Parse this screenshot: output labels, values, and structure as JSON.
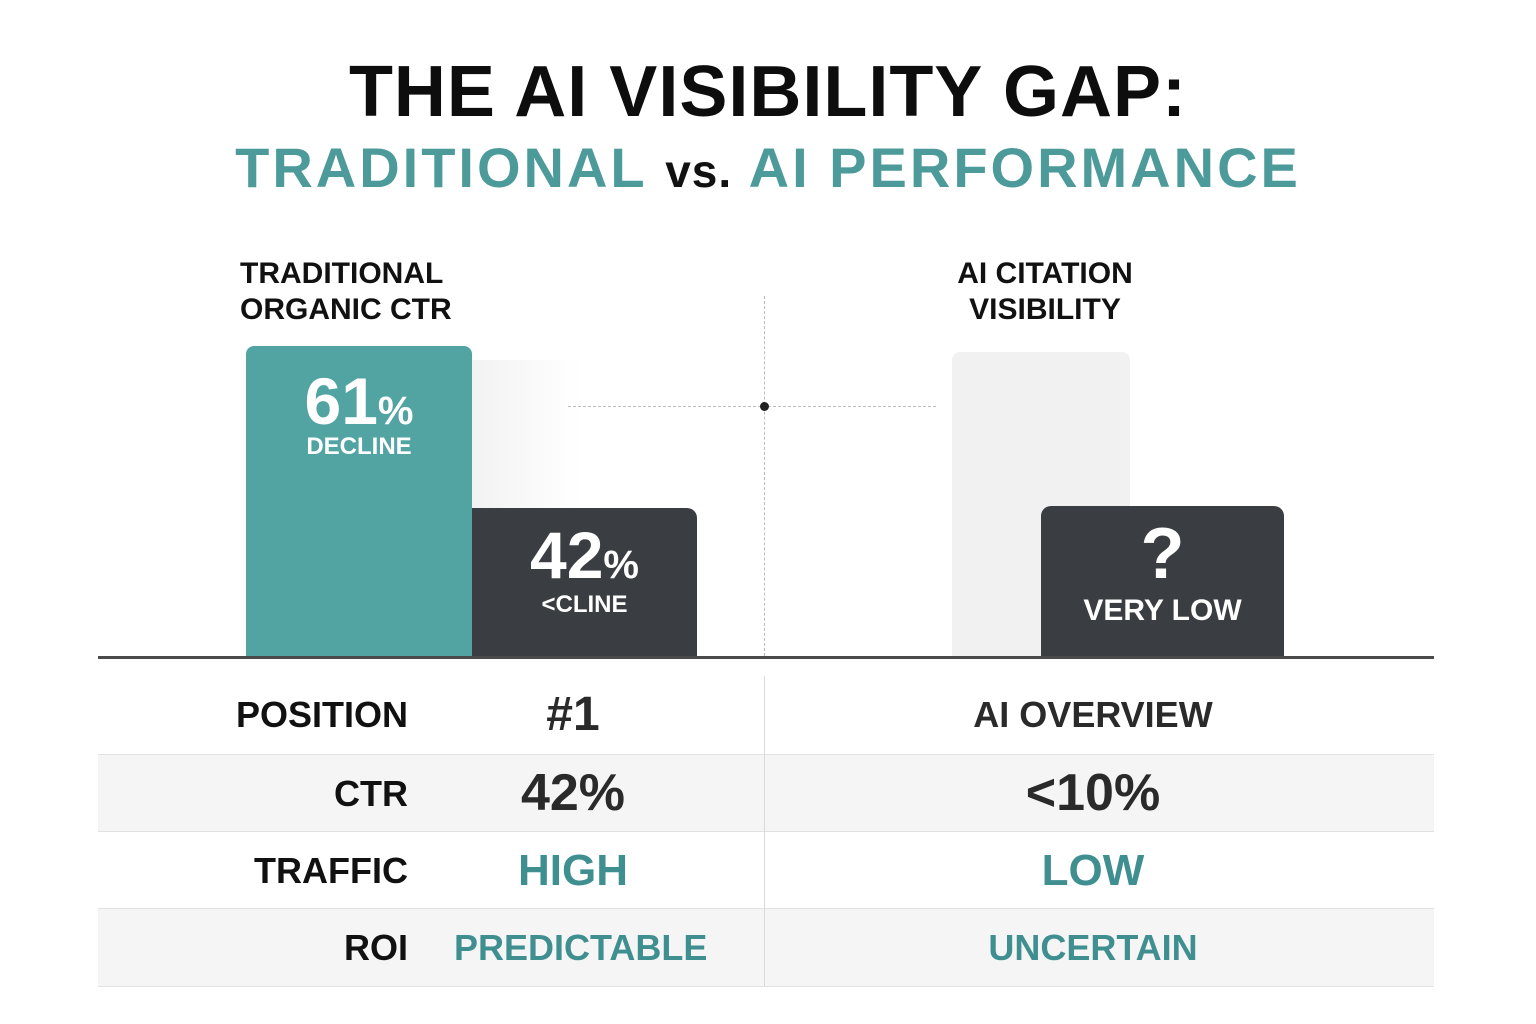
{
  "title": "THE AI VISIBILITY GAP:",
  "subtitle": {
    "part1": "TRADITIONAL",
    "vs": "vs.",
    "part2": "AI PERFORMANCE"
  },
  "colors": {
    "teal": "#52a4a3",
    "dark": "#3a3d41",
    "ghost": "#f1f1f1"
  },
  "chart_data": {
    "type": "bar",
    "panels": [
      {
        "title": "TRADITIONAL\nORGANIC CTR",
        "bars": [
          {
            "value_text": "61",
            "unit": "%",
            "label": "DECLINE"
          },
          {
            "value_text": "42",
            "unit": "%",
            "label": "<CLINE"
          }
        ]
      },
      {
        "title": "AI CITATION\nVISIBILITY",
        "bars": [
          {
            "value_text": "?",
            "label": "VERY LOW"
          }
        ]
      }
    ]
  },
  "table": {
    "rows": [
      {
        "label": "POSITION",
        "left": "#1",
        "right": "AI OVERVIEW"
      },
      {
        "label": "CTR",
        "left": "42%",
        "right": "<10%"
      },
      {
        "label": "TRAFFIC",
        "left": "HIGH",
        "right": "LOW"
      },
      {
        "label": "ROI",
        "left": "PREDICTABLE",
        "right": "UNCERTAIN"
      }
    ]
  }
}
